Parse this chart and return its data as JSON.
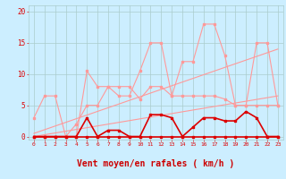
{
  "background_color": "#cceeff",
  "grid_color": "#aacccc",
  "xlabel": "Vent moyen/en rafales ( km/h )",
  "xlabel_color": "#cc0000",
  "xlabel_fontsize": 7,
  "ylim": [
    -0.5,
    21
  ],
  "xlim": [
    -0.5,
    23.5
  ],
  "line_rafales_x": [
    0,
    1,
    2,
    3,
    4,
    5,
    6,
    7,
    8,
    9,
    10,
    11,
    12,
    13,
    14,
    15,
    16,
    17,
    18,
    19,
    20,
    21,
    22,
    23
  ],
  "line_rafales_y": [
    3,
    6.5,
    6.5,
    0,
    0,
    10.5,
    8,
    8,
    6.5,
    6.5,
    10.5,
    15,
    15,
    6.5,
    12,
    12,
    18,
    18,
    13,
    5,
    5,
    15,
    15,
    5
  ],
  "line_moyen_x": [
    0,
    1,
    2,
    3,
    4,
    5,
    6,
    7,
    8,
    9,
    10,
    11,
    12,
    13,
    14,
    15,
    16,
    17,
    18,
    19,
    20,
    21,
    22,
    23
  ],
  "line_moyen_y": [
    0,
    0,
    0,
    0,
    2,
    5,
    5,
    8,
    8,
    8,
    6,
    8,
    8,
    6.5,
    6.5,
    6.5,
    6.5,
    6.5,
    6,
    5,
    5,
    5,
    5,
    5
  ],
  "trend1_x": [
    0,
    23
  ],
  "trend1_y": [
    0.5,
    14
  ],
  "trend2_x": [
    0,
    23
  ],
  "trend2_y": [
    0,
    6.5
  ],
  "line_gust_x": [
    0,
    1,
    2,
    3,
    4,
    5,
    6,
    7,
    8,
    9,
    10,
    11,
    12,
    13,
    14,
    15,
    16,
    17,
    18,
    19,
    20,
    21,
    22,
    23
  ],
  "line_gust_y": [
    0,
    0,
    0,
    0,
    0,
    3,
    0,
    1,
    1,
    0,
    0,
    3.5,
    3.5,
    3,
    0,
    1.5,
    3,
    3,
    2.5,
    2.5,
    4,
    3,
    0,
    0
  ],
  "line_avg_x": [
    0,
    1,
    2,
    3,
    4,
    5,
    6,
    7,
    8,
    9,
    10,
    11,
    12,
    13,
    14,
    15,
    16,
    17,
    18,
    19,
    20,
    21,
    22,
    23
  ],
  "line_avg_y": [
    0,
    0,
    0,
    0,
    0,
    0,
    0,
    0,
    0,
    0,
    0,
    0,
    0,
    0,
    0,
    0,
    0,
    0,
    0,
    0,
    0,
    0,
    0,
    0
  ],
  "pink_color": "#ff9999",
  "red_color": "#dd0000",
  "arrows": [
    "↙",
    "↙",
    "↙",
    "↙",
    "↑",
    "↑",
    "↑",
    "↑",
    "↑",
    "↗",
    "←",
    "↑",
    "↖",
    "↖",
    "←",
    "←",
    "←",
    "↖",
    "↙",
    "↙",
    "↙",
    "↙",
    "↙"
  ]
}
